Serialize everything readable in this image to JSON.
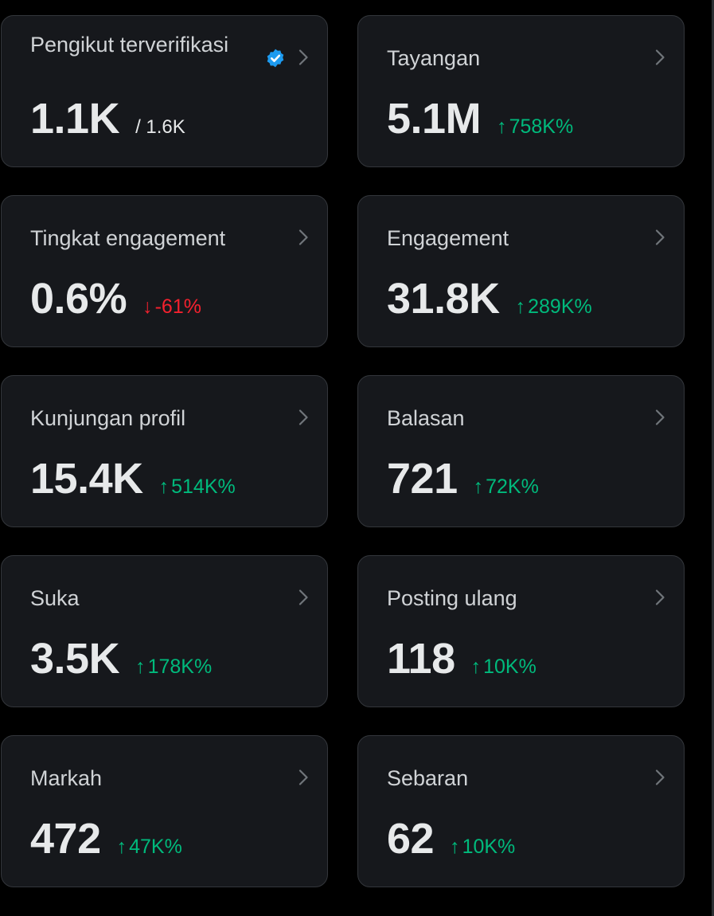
{
  "colors": {
    "background": "#000000",
    "card_background": "#16181c",
    "card_border": "#33363b",
    "positive": "#00ba7c",
    "negative": "#f4212e",
    "verified": "#1d9bf0"
  },
  "icons": {
    "chevron": "chevron-right-icon",
    "verified": "verified-badge-icon",
    "up": "arrow-up-icon",
    "down": "arrow-down-icon"
  },
  "cards": [
    {
      "title": "Pengikut terverifikasi",
      "value": "1.1K",
      "total": "/ 1.6K",
      "verified": true
    },
    {
      "title": "Tayangan",
      "value": "5.1M",
      "change": "758K%",
      "direction": "up"
    },
    {
      "title": "Tingkat engagement",
      "value": "0.6%",
      "change": "-61%",
      "direction": "down"
    },
    {
      "title": "Engagement",
      "value": "31.8K",
      "change": "289K%",
      "direction": "up"
    },
    {
      "title": "Kunjungan profil",
      "value": "15.4K",
      "change": "514K%",
      "direction": "up"
    },
    {
      "title": "Balasan",
      "value": "721",
      "change": "72K%",
      "direction": "up"
    },
    {
      "title": "Suka",
      "value": "3.5K",
      "change": "178K%",
      "direction": "up"
    },
    {
      "title": "Posting ulang",
      "value": "118",
      "change": "10K%",
      "direction": "up"
    },
    {
      "title": "Markah",
      "value": "472",
      "change": "47K%",
      "direction": "up"
    },
    {
      "title": "Sebaran",
      "value": "62",
      "change": "10K%",
      "direction": "up"
    }
  ]
}
